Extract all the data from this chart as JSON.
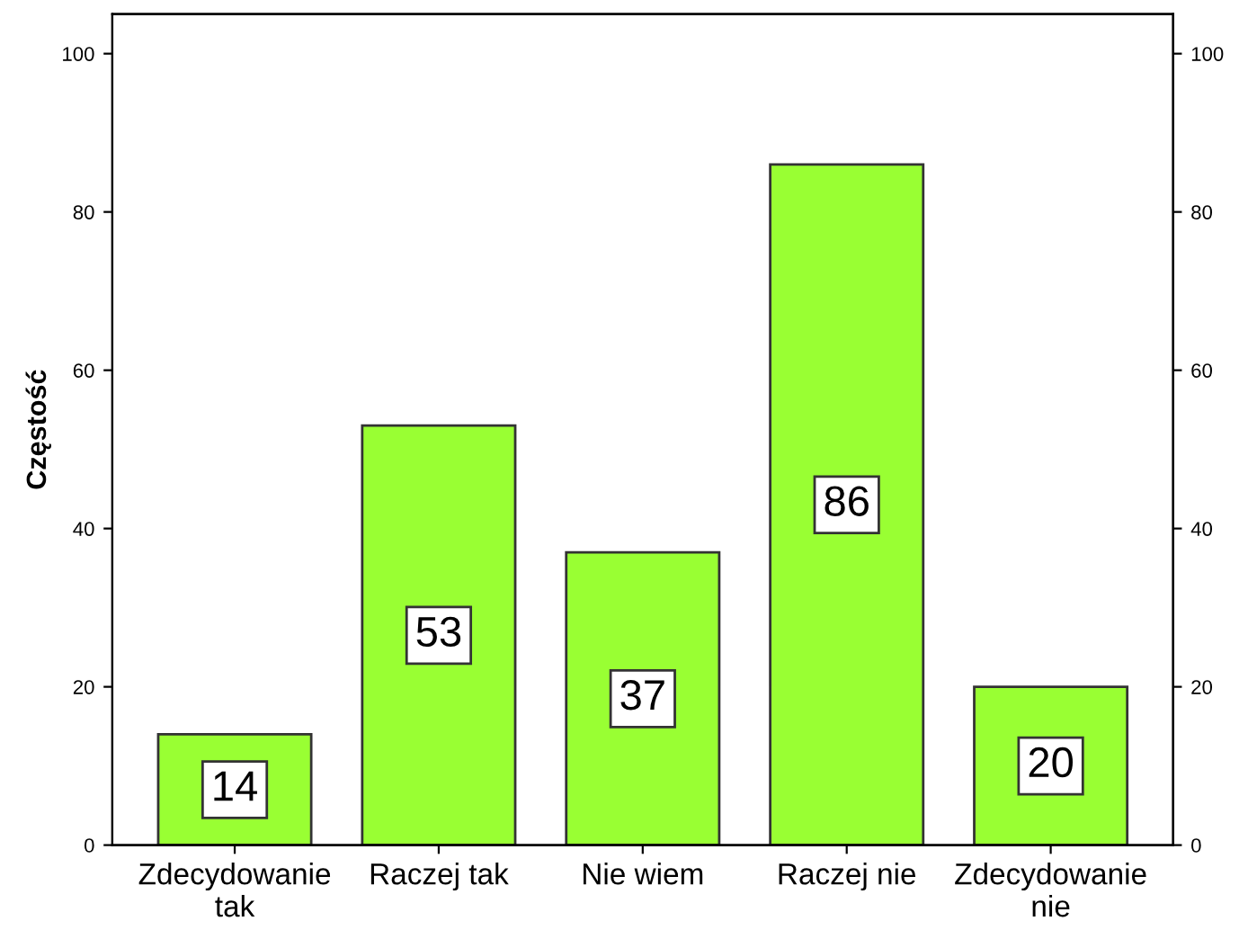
{
  "chart_data": {
    "type": "bar",
    "ylabel": "Częstość",
    "categories": [
      "Zdecydowanie\ntak",
      "Raczej tak",
      "Nie wiem",
      "Raczej nie",
      "Zdecydowanie\nnie"
    ],
    "values": [
      14,
      53,
      37,
      86,
      20
    ],
    "color": "#99ff33",
    "ylim": [
      0,
      105
    ],
    "yticks": [
      0,
      20,
      40,
      60,
      80,
      100
    ],
    "y2lim": [
      0,
      105
    ],
    "y2ticks": [
      0,
      20,
      40,
      60,
      80,
      100
    ],
    "data_labels": true,
    "grid": false,
    "legend": false
  }
}
